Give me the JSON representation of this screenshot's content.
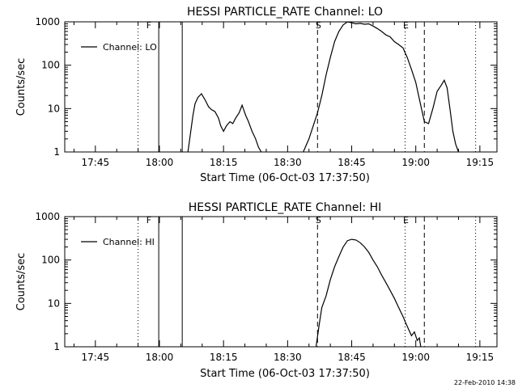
{
  "chart_data": [
    {
      "type": "line",
      "title": "HESSI PARTICLE_RATE Channel: LO",
      "xlabel": "Start Time (06-Oct-03 17:37:50)",
      "ylabel": "Counts/sec",
      "y_scale": "log",
      "ylim": [
        1,
        1000
      ],
      "xlim": [
        "17:37:50",
        "19:19:00"
      ],
      "x_ticks": [
        "17:45",
        "18:00",
        "18:15",
        "18:30",
        "18:45",
        "19:00",
        "19:15"
      ],
      "y_ticks": [
        "1",
        "10",
        "100",
        "1000"
      ],
      "legend": {
        "position": "top-left",
        "entries": [
          "Channel: LO"
        ]
      },
      "markers": [
        {
          "label": "F",
          "time": "17:57:20",
          "style": "dotted"
        },
        {
          "label": "S",
          "time": "18:37:00",
          "style": "dashed"
        },
        {
          "label": "E",
          "time": "18:57:30",
          "style": "dotted"
        }
      ],
      "vlines": [
        {
          "time": "17:55:00",
          "style": "dotted"
        },
        {
          "time": "17:59:50",
          "style": "solid"
        },
        {
          "time": "18:05:20",
          "style": "solid"
        },
        {
          "time": "18:37:00",
          "style": "dashed"
        },
        {
          "time": "18:57:30",
          "style": "dotted"
        },
        {
          "time": "19:02:00",
          "style": "dashed"
        },
        {
          "time": "19:14:00",
          "style": "dotted"
        }
      ],
      "series": [
        {
          "name": "Channel: LO",
          "segments": [
            {
              "x": [
                "18:06:40",
                "18:07:20",
                "18:07:50",
                "18:08:20",
                "18:09:00",
                "18:09:50",
                "18:10:40",
                "18:11:30",
                "18:12:10",
                "18:13:00",
                "18:13:50",
                "18:14:20",
                "18:15:00",
                "18:15:40",
                "18:16:30",
                "18:17:10",
                "18:17:50",
                "18:18:40",
                "18:19:20",
                "18:20:10",
                "18:20:50",
                "18:21:40",
                "18:22:30",
                "18:23:10",
                "18:23:50"
              ],
              "y": [
                1,
                3,
                7,
                13,
                18,
                22,
                16,
                11,
                9.5,
                8.5,
                6,
                4,
                3,
                4,
                5,
                4.5,
                6,
                8,
                12,
                7,
                5,
                3,
                2,
                1.3,
                1
              ]
            },
            {
              "x": [
                "18:33:40",
                "18:35:00",
                "18:36:00",
                "18:37:00",
                "18:38:00",
                "18:39:00",
                "18:40:00",
                "18:41:00",
                "18:42:00",
                "18:43:00",
                "18:44:00",
                "18:45:00",
                "18:46:00",
                "18:47:00",
                "18:48:00",
                "18:49:00",
                "18:50:00",
                "18:51:00",
                "18:52:00",
                "18:53:00",
                "18:54:00",
                "18:55:00",
                "18:56:00",
                "18:57:00",
                "18:58:00",
                "18:59:00",
                "19:00:00",
                "19:00:40",
                "19:01:20",
                "19:02:00",
                "19:03:00",
                "19:04:00",
                "19:05:00",
                "19:06:00",
                "19:06:40",
                "19:07:20",
                "19:08:00",
                "19:08:40",
                "19:09:20",
                "19:10:00"
              ],
              "y": [
                1,
                2,
                4,
                8,
                20,
                60,
                150,
                350,
                600,
                850,
                1000,
                950,
                900,
                920,
                880,
                900,
                800,
                700,
                600,
                500,
                450,
                350,
                300,
                250,
                150,
                80,
                40,
                20,
                10,
                5,
                4.5,
                10,
                25,
                35,
                45,
                30,
                10,
                3,
                1.5,
                1
              ]
            }
          ]
        }
      ]
    },
    {
      "type": "line",
      "title": "HESSI PARTICLE_RATE Channel: HI",
      "xlabel": "Start Time (06-Oct-03 17:37:50)",
      "ylabel": "Counts/sec",
      "y_scale": "log",
      "ylim": [
        1,
        1000
      ],
      "xlim": [
        "17:37:50",
        "19:19:00"
      ],
      "x_ticks": [
        "17:45",
        "18:00",
        "18:15",
        "18:30",
        "18:45",
        "19:00",
        "19:15"
      ],
      "y_ticks": [
        "1",
        "10",
        "100",
        "1000"
      ],
      "legend": {
        "position": "top-left",
        "entries": [
          "Channel: HI"
        ]
      },
      "markers": [
        {
          "label": "F",
          "time": "17:57:20",
          "style": "dotted"
        },
        {
          "label": "S",
          "time": "18:37:00",
          "style": "dashed"
        },
        {
          "label": "E",
          "time": "18:57:30",
          "style": "dotted"
        }
      ],
      "vlines": [
        {
          "time": "17:55:00",
          "style": "dotted"
        },
        {
          "time": "17:59:50",
          "style": "solid"
        },
        {
          "time": "18:05:20",
          "style": "solid"
        },
        {
          "time": "18:37:00",
          "style": "dashed"
        },
        {
          "time": "18:57:30",
          "style": "dotted"
        },
        {
          "time": "19:02:00",
          "style": "dashed"
        },
        {
          "time": "19:14:00",
          "style": "dotted"
        }
      ],
      "series": [
        {
          "name": "Channel: HI",
          "segments": [
            {
              "x": [
                "18:36:40",
                "18:37:20",
                "18:38:00",
                "18:39:00",
                "18:40:00",
                "18:41:00",
                "18:42:00",
                "18:43:00",
                "18:44:00",
                "18:45:00",
                "18:46:00",
                "18:47:00",
                "18:48:00",
                "18:49:00",
                "18:50:00",
                "18:51:00",
                "18:52:00",
                "18:53:00",
                "18:54:00",
                "18:55:00",
                "18:56:00",
                "18:57:00",
                "18:57:40",
                "18:58:20",
                "18:59:00",
                "18:59:40",
                "19:00:20",
                "19:00:50",
                "19:01:10"
              ],
              "y": [
                1,
                3,
                8,
                15,
                35,
                70,
                120,
                200,
                280,
                300,
                290,
                250,
                200,
                150,
                100,
                70,
                45,
                30,
                20,
                13,
                8,
                5,
                3.5,
                2.5,
                1.8,
                2.2,
                1.4,
                1.6,
                1
              ]
            }
          ]
        }
      ]
    }
  ],
  "footer": {
    "timestamp": "22-Feb-2010 14:38"
  }
}
